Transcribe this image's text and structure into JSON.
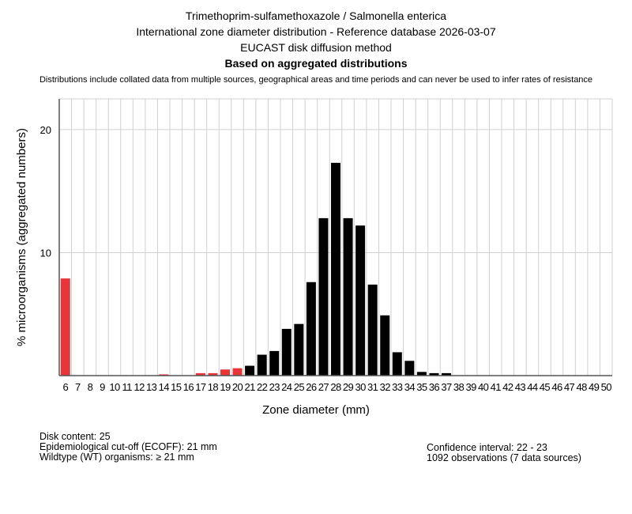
{
  "header": {
    "title1": "Trimethoprim-sulfamethoxazole / Salmonella enterica",
    "title2": "International zone diameter distribution - Reference database 2026-03-07",
    "title3": "EUCAST disk diffusion method",
    "subtitle": "Based on aggregated distributions",
    "note": "Distributions include collated data from multiple sources, geographical areas and time periods and can never be used to infer rates of resistance"
  },
  "footer": {
    "disk": "Disk content: 25",
    "ecoff": "Epidemiological cut-off (ECOFF): 21 mm",
    "wt": "Wildtype (WT) organisms: ≥ 21 mm",
    "ci": "Confidence interval: 22 - 23",
    "obs": "1092 observations (7 data sources)"
  },
  "colors": {
    "below_ecoff": "#e8353a",
    "wildtype": "#000000",
    "grid": "#d0d0d0"
  },
  "chart_data": {
    "type": "bar",
    "xlabel": "Zone diameter (mm)",
    "ylabel": "% microorganisms (aggregated numbers)",
    "ylim": [
      0,
      22.5
    ],
    "yticks": [
      10,
      20
    ],
    "ecoff": 21,
    "categories": [
      6,
      7,
      8,
      9,
      10,
      11,
      12,
      13,
      14,
      15,
      16,
      17,
      18,
      19,
      20,
      21,
      22,
      23,
      24,
      25,
      26,
      27,
      28,
      29,
      30,
      31,
      32,
      33,
      34,
      35,
      36,
      37,
      38,
      39,
      40,
      41,
      42,
      43,
      44,
      45,
      46,
      47,
      48,
      49,
      50
    ],
    "values": [
      7.9,
      0,
      0,
      0,
      0,
      0,
      0,
      0,
      0.1,
      0,
      0,
      0.2,
      0.2,
      0.5,
      0.6,
      0.8,
      1.7,
      2.0,
      3.8,
      4.2,
      7.6,
      12.8,
      17.3,
      12.8,
      12.2,
      7.4,
      4.9,
      1.9,
      1.2,
      0.3,
      0.2,
      0.2,
      0,
      0,
      0,
      0,
      0,
      0,
      0,
      0,
      0,
      0,
      0,
      0,
      0
    ]
  }
}
